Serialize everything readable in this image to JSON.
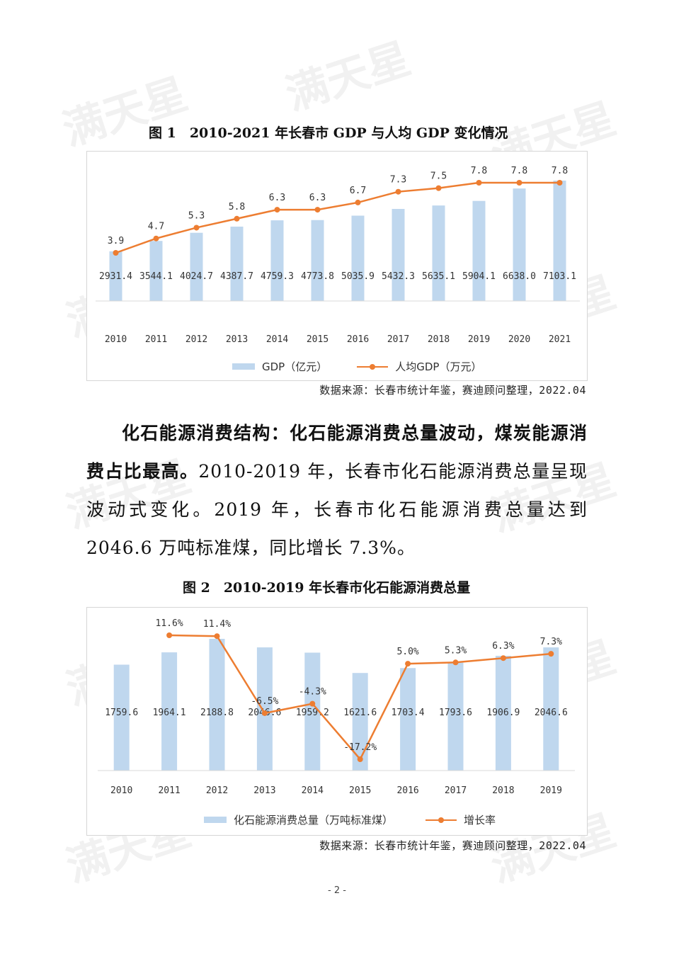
{
  "figure1": {
    "title": "图 1　2010-2021 年长春市 GDP 与人均 GDP 变化情况",
    "legend_bar": "GDP（亿元）",
    "legend_line": "人均GDP（万元）",
    "source": "数据来源：长春市统计年鉴，赛迪顾问整理，2022.04"
  },
  "paragraph": {
    "bold": "化石能源消费结构：化石能源消费总量波动，煤炭能源消费占比最高。",
    "text": "2010-2019 年，长春市化石能源消费总量呈现波动式变化。2019 年，长春市化石能源消费总量达到 2046.6 万吨标准煤，同比增长 7.3%。"
  },
  "figure2": {
    "title": "图 2　2010-2019 年长春市化石能源消费总量",
    "legend_bar": "化石能源消费总量（万吨标准煤）",
    "legend_line": "增长率",
    "source": "数据来源：长春市统计年鉴，赛迪顾问整理，2022.04"
  },
  "page_number": "- 2 -",
  "watermark": "满天星",
  "colors": {
    "bar": "#bfd7ee",
    "line": "#ed7d31"
  },
  "chart_data": [
    {
      "type": "bar",
      "title": "2010-2021 年长春市 GDP 与人均 GDP 变化情况",
      "categories": [
        "2010",
        "2011",
        "2012",
        "2013",
        "2014",
        "2015",
        "2016",
        "2017",
        "2018",
        "2019",
        "2020",
        "2021"
      ],
      "series": [
        {
          "name": "GDP（亿元）",
          "type": "bar",
          "values": [
            2931.4,
            3544.1,
            4024.7,
            4387.7,
            4759.3,
            4773.8,
            5035.9,
            5432.3,
            5635.1,
            5904.1,
            6638.0,
            7103.1
          ],
          "labels": [
            "2931.4",
            "3544.1",
            "4024.7",
            "4387.7",
            "4759.3",
            "4773.8",
            "5035.9",
            "5432.3",
            "5635.1",
            "5904.1",
            "6638.0",
            "7103.1"
          ]
        },
        {
          "name": "人均GDP（万元）",
          "type": "line",
          "values": [
            3.9,
            4.7,
            5.3,
            5.8,
            6.3,
            6.3,
            6.7,
            7.3,
            7.5,
            7.8,
            7.8,
            7.8
          ],
          "labels": [
            "3.9",
            "4.7",
            "5.3",
            "5.8",
            "6.3",
            "6.3",
            "6.7",
            "7.3",
            "7.5",
            "7.8",
            "7.8",
            "7.8"
          ]
        }
      ],
      "legend": "bottom",
      "grid": false
    },
    {
      "type": "bar",
      "title": "2010-2019 年长春市化石能源消费总量",
      "categories": [
        "2010",
        "2011",
        "2012",
        "2013",
        "2014",
        "2015",
        "2016",
        "2017",
        "2018",
        "2019"
      ],
      "series": [
        {
          "name": "化石能源消费总量（万吨标准煤）",
          "type": "bar",
          "values": [
            1759.6,
            1964.1,
            2188.8,
            2046.6,
            1959.2,
            1621.6,
            1703.4,
            1793.6,
            1906.9,
            2046.6
          ],
          "labels": [
            "1759.6",
            "1964.1",
            "2188.8",
            "2046.6",
            "1959.2",
            "1621.6",
            "1703.4",
            "1793.6",
            "1906.9",
            "2046.6"
          ]
        },
        {
          "name": "增长率",
          "type": "line",
          "values": [
            null,
            11.6,
            11.4,
            -6.5,
            -4.3,
            -17.2,
            5.0,
            5.3,
            6.3,
            7.3
          ],
          "labels": [
            "",
            "11.6%",
            "11.4%",
            "-6.5%",
            "-4.3%",
            "-17.2%",
            "5.0%",
            "5.3%",
            "6.3%",
            "7.3%"
          ]
        }
      ],
      "legend": "bottom",
      "grid": false
    }
  ]
}
